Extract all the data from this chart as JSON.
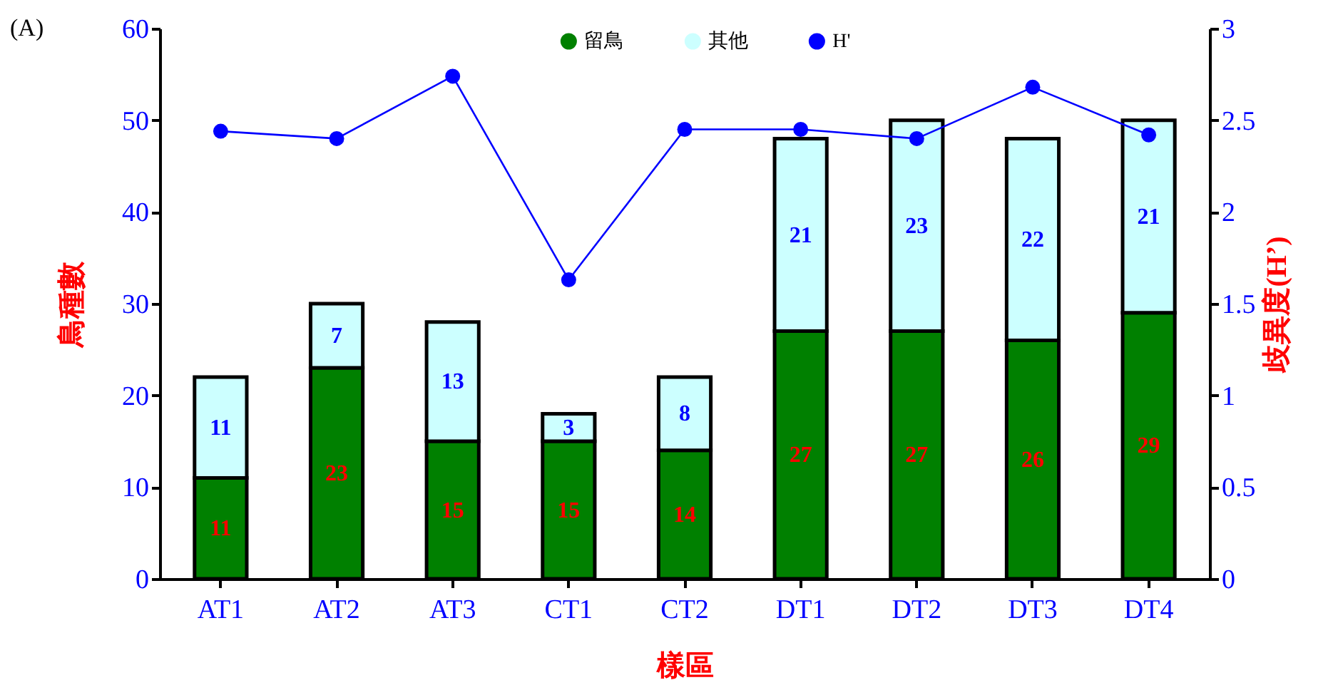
{
  "chart_data": {
    "type": "bar",
    "stacked": true,
    "xlabel": "樣區",
    "ylabel": "鳥種數",
    "y2label": "歧異度(H’)",
    "annotations": [
      "(A)"
    ],
    "categories": [
      "AT1",
      "AT2",
      "AT3",
      "CT1",
      "CT2",
      "DT1",
      "DT2",
      "DT3",
      "DT4"
    ],
    "series": [
      {
        "name": "留鳥",
        "color": "#008000",
        "values": [
          11,
          23,
          15,
          15,
          14,
          27,
          27,
          26,
          29
        ],
        "value_labels": [
          "11",
          "23",
          "15",
          "15",
          "14",
          "27",
          "27",
          "26",
          "29"
        ]
      },
      {
        "name": "其他",
        "color": "#ccffff",
        "values": [
          11,
          7,
          13,
          3,
          8,
          21,
          23,
          22,
          21
        ],
        "value_labels": [
          "11",
          "7",
          "13",
          "3",
          "8",
          "21",
          "23",
          "22",
          "21"
        ]
      },
      {
        "name": "H'",
        "type": "line",
        "axis": "y2",
        "color": "#0000ff",
        "values": [
          2.44,
          2.4,
          2.74,
          1.63,
          2.45,
          2.45,
          2.4,
          2.68,
          2.42
        ]
      }
    ],
    "ylim": [
      0,
      60
    ],
    "yticks": [
      0,
      10,
      20,
      30,
      40,
      50,
      60
    ],
    "y2lim": [
      0,
      3
    ],
    "y2ticks": [
      0,
      0.5,
      1,
      1.5,
      2,
      2.5,
      3
    ],
    "legend": "top",
    "marker": "circle",
    "grid": false
  }
}
